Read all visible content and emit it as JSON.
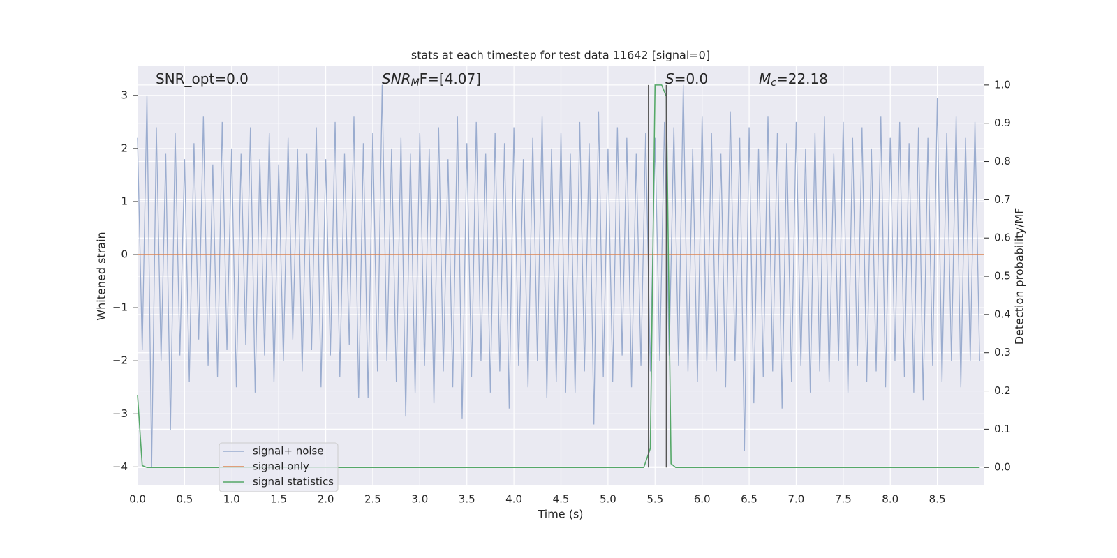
{
  "chart_data": {
    "type": "line",
    "title": "stats at each timestep for test data 11642 [signal=0]",
    "x_label": "Time (s)",
    "y_label": "Whitened strain",
    "y2_label": "Detection probability/MF",
    "xlim": [
      0,
      9.0
    ],
    "ylim": [
      -4.35,
      3.55
    ],
    "y2lim": [
      -0.047,
      1.049
    ],
    "xticks": [
      {
        "value": 0,
        "label": "0.0"
      },
      0.5,
      {
        "value": 1,
        "label": "1.0"
      },
      1.5,
      {
        "value": 2,
        "label": "2.0"
      },
      2.5,
      {
        "value": 3,
        "label": "3.0"
      },
      3.5,
      {
        "value": 4,
        "label": "4.0"
      },
      4.5,
      {
        "value": 5,
        "label": "5.0"
      },
      5.5,
      {
        "value": 6,
        "label": "6.0"
      },
      6.5,
      {
        "value": 7,
        "label": "7.0"
      },
      7.5,
      {
        "value": 8,
        "label": "8.0"
      },
      8.5
    ],
    "yticks": [
      {
        "value": -4,
        "label": "−4"
      },
      {
        "value": -3,
        "label": "−3"
      },
      {
        "value": -2,
        "label": "−2"
      },
      {
        "value": -1,
        "label": "−1"
      },
      0,
      1,
      2,
      3
    ],
    "y2ticks": [
      {
        "value": 0,
        "label": "0.0"
      },
      0.1,
      0.2,
      0.3,
      0.4,
      0.5,
      0.6,
      0.7,
      0.8,
      0.9,
      {
        "value": 1,
        "label": "1.0"
      }
    ],
    "grid": true,
    "legend": "lower left",
    "series": [
      {
        "name": "signal+ noise",
        "color": "#9aaccf",
        "x": [
          0,
          0.05,
          0.1,
          0.15,
          0.2,
          0.25,
          0.3,
          0.35,
          0.4,
          0.45,
          0.5,
          0.55,
          0.6,
          0.65,
          0.7,
          0.75,
          0.8,
          0.85,
          0.9,
          0.95,
          1,
          1.05,
          1.1,
          1.15,
          1.2,
          1.25,
          1.3,
          1.35,
          1.4,
          1.45,
          1.5,
          1.55,
          1.6,
          1.65,
          1.7,
          1.75,
          1.8,
          1.85,
          1.9,
          1.95,
          2,
          2.05,
          2.1,
          2.15,
          2.2,
          2.25,
          2.3,
          2.35,
          2.4,
          2.45,
          2.5,
          2.55,
          2.6,
          2.65,
          2.7,
          2.75,
          2.8,
          2.85,
          2.9,
          2.95,
          3,
          3.05,
          3.1,
          3.15,
          3.2,
          3.25,
          3.3,
          3.35,
          3.4,
          3.45,
          3.5,
          3.55,
          3.6,
          3.65,
          3.7,
          3.75,
          3.8,
          3.85,
          3.9,
          3.95,
          4,
          4.05,
          4.1,
          4.15,
          4.2,
          4.25,
          4.3,
          4.35,
          4.4,
          4.45,
          4.5,
          4.55,
          4.6,
          4.65,
          4.7,
          4.75,
          4.8,
          4.85,
          4.9,
          4.95,
          5,
          5.05,
          5.1,
          5.15,
          5.2,
          5.25,
          5.3,
          5.35,
          5.4,
          5.45,
          5.5,
          5.55,
          5.6,
          5.65,
          5.7,
          5.75,
          5.8,
          5.85,
          5.9,
          5.95,
          6,
          6.05,
          6.1,
          6.15,
          6.2,
          6.25,
          6.3,
          6.35,
          6.4,
          6.45,
          6.5,
          6.55,
          6.6,
          6.65,
          6.7,
          6.75,
          6.8,
          6.85,
          6.9,
          6.95,
          7,
          7.05,
          7.1,
          7.15,
          7.2,
          7.25,
          7.3,
          7.35,
          7.4,
          7.45,
          7.5,
          7.55,
          7.6,
          7.65,
          7.7,
          7.75,
          7.8,
          7.85,
          7.9,
          7.95,
          8,
          8.05,
          8.1,
          8.15,
          8.2,
          8.25,
          8.3,
          8.35,
          8.4,
          8.45,
          8.5,
          8.55,
          8.6,
          8.65,
          8.7,
          8.75,
          8.8,
          8.85,
          8.9,
          8.95
        ],
        "values": [
          2.2,
          -1.8,
          3.0,
          -4.0,
          2.4,
          -2.0,
          1.9,
          -3.3,
          2.3,
          -1.9,
          1.8,
          -2.4,
          2.1,
          -1.6,
          2.6,
          -2.1,
          1.7,
          -2.3,
          2.5,
          -1.8,
          2.0,
          -2.5,
          1.9,
          -1.7,
          2.4,
          -2.6,
          1.8,
          -1.9,
          2.3,
          -2.4,
          1.7,
          -2.0,
          2.2,
          -1.6,
          2.0,
          -2.2,
          1.9,
          -1.8,
          2.4,
          -2.5,
          1.8,
          -1.9,
          2.5,
          -2.3,
          1.9,
          -1.7,
          2.6,
          -2.7,
          2.1,
          -2.7,
          2.3,
          -2.2,
          3.2,
          -2.0,
          2.0,
          -2.4,
          2.2,
          -3.05,
          1.9,
          -2.6,
          2.3,
          -2.1,
          2.0,
          -2.8,
          2.4,
          -2.2,
          1.8,
          -2.5,
          2.6,
          -3.1,
          2.1,
          -2.3,
          2.5,
          -2.0,
          1.9,
          -2.6,
          2.3,
          -2.2,
          2.1,
          -2.9,
          2.4,
          -2.1,
          1.8,
          -2.5,
          2.2,
          -2.0,
          2.6,
          -2.7,
          2.0,
          -2.4,
          2.3,
          -2.6,
          1.9,
          -2.6,
          2.5,
          -2.2,
          2.1,
          -3.2,
          2.7,
          -2.3,
          2.0,
          -2.4,
          2.4,
          -1.9,
          2.2,
          -2.5,
          1.9,
          -2.1,
          2.3,
          -2.2,
          2.2,
          -2.0,
          2.5,
          -1.9,
          2.4,
          -2.1,
          3.2,
          -2.2,
          2.0,
          -2.4,
          2.6,
          -2.0,
          2.3,
          -2.2,
          1.9,
          -2.5,
          2.7,
          -2.0,
          2.2,
          -3.7,
          2.4,
          -2.8,
          2.0,
          -2.3,
          2.6,
          -2.2,
          2.3,
          -2.9,
          2.1,
          -2.4,
          2.5,
          -2.1,
          2.0,
          -2.6,
          2.3,
          -2.2,
          2.6,
          -2.4,
          1.9,
          -2.0,
          2.5,
          -2.6,
          2.2,
          -2.1,
          2.4,
          -2.4,
          2.0,
          -2.2,
          2.6,
          -2.5,
          2.2,
          -2.0,
          2.5,
          -2.3,
          2.1,
          -2.6,
          2.4,
          -2.75,
          2.2,
          -2.1,
          2.95,
          -2.4,
          2.3,
          -2.0,
          2.6,
          -2.5,
          2.2,
          -2.0,
          2.5,
          -2.0
        ]
      },
      {
        "name": "signal only",
        "color": "#dd8452",
        "x": [
          0,
          9.0
        ],
        "values": [
          0,
          0
        ]
      },
      {
        "name": "signal statistics",
        "color": "#55a868",
        "axis": "y2",
        "x": [
          0,
          0.05,
          0.1,
          5.38,
          5.45,
          5.5,
          5.57,
          5.62,
          5.67,
          5.72,
          8.95
        ],
        "values": [
          0.19,
          0.005,
          0,
          0,
          0.05,
          1.0,
          1.0,
          0.97,
          0.01,
          0,
          0
        ]
      }
    ],
    "vlines": {
      "x": [
        5.43,
        5.62
      ],
      "range": [
        0,
        1
      ],
      "axis": "y2",
      "color": "#555555"
    },
    "annotations": [
      {
        "text": "SNR_opt=0.0"
      },
      {
        "text": "SNR",
        "sub": "M",
        "rest": "F=[4.07]",
        "math": true
      },
      {
        "text": "S",
        "rest": "=0.0",
        "math": true
      },
      {
        "text": "M",
        "sub": "c",
        "rest": "=22.18",
        "math": true
      }
    ]
  }
}
